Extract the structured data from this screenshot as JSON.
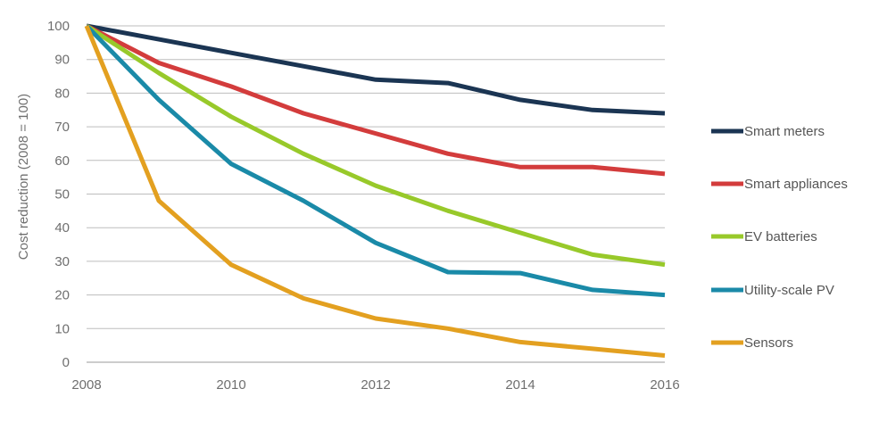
{
  "chart_data": {
    "type": "line",
    "ylabel": "Cost reduction (2008 = 100)",
    "xlabel": "",
    "x": [
      2008,
      2009,
      2010,
      2011,
      2012,
      2013,
      2014,
      2015,
      2016
    ],
    "xticks": [
      "2008",
      "2010",
      "2012",
      "2014",
      "2016"
    ],
    "yticks": [
      "0",
      "10",
      "20",
      "30",
      "40",
      "50",
      "60",
      "70",
      "80",
      "90",
      "100"
    ],
    "xlim": [
      2008,
      2016
    ],
    "ylim": [
      0,
      100
    ],
    "grid": "horizontal",
    "legend_position": "right",
    "series": [
      {
        "name": "Smart meters",
        "color": "#1b3553",
        "values": [
          100,
          96,
          92,
          88,
          84,
          83,
          78,
          75,
          74
        ]
      },
      {
        "name": "Smart appliances",
        "color": "#d33c3c",
        "values": [
          100,
          89,
          82,
          74,
          68,
          62,
          58,
          58,
          56
        ]
      },
      {
        "name": "EV batteries",
        "color": "#98c92a",
        "values": [
          100,
          86,
          73,
          62,
          52.5,
          45,
          38.5,
          32,
          29
        ]
      },
      {
        "name": "Utility-scale PV",
        "color": "#1a8aa8",
        "values": [
          100,
          78,
          59,
          48,
          35.5,
          26.8,
          26.5,
          21.5,
          20
        ]
      },
      {
        "name": "Sensors",
        "color": "#e3a020",
        "values": [
          100,
          48,
          29,
          19,
          13,
          10,
          6,
          4,
          2
        ]
      }
    ]
  }
}
